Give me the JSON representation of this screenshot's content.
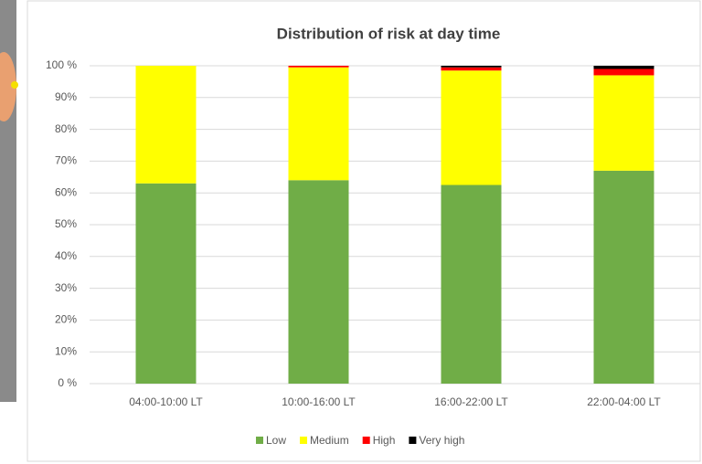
{
  "chart_data": {
    "type": "stacked_bar",
    "title": "Distribution of risk at day time",
    "categories": [
      "04:00-10:00 LT",
      "10:00-16:00 LT",
      "16:00-22:00 LT",
      "22:00-04:00 LT"
    ],
    "series": [
      {
        "name": "Low",
        "color": "#70ad47",
        "values": [
          63,
          64,
          62.5,
          67
        ]
      },
      {
        "name": "Medium",
        "color": "#ffff00",
        "values": [
          37,
          35.5,
          36,
          30
        ]
      },
      {
        "name": "High",
        "color": "#ff0000",
        "values": [
          0,
          0.5,
          1,
          2
        ]
      },
      {
        "name": "Very high",
        "color": "#000000",
        "values": [
          0,
          0,
          0.5,
          1
        ]
      }
    ],
    "ylim": [
      0,
      100
    ],
    "yticks": [
      {
        "value": 0,
        "label": "0 %"
      },
      {
        "value": 10,
        "label": "10%"
      },
      {
        "value": 20,
        "label": "20%"
      },
      {
        "value": 30,
        "label": "30%"
      },
      {
        "value": 40,
        "label": "40%"
      },
      {
        "value": 50,
        "label": "50%"
      },
      {
        "value": 60,
        "label": "60%"
      },
      {
        "value": 70,
        "label": "70%"
      },
      {
        "value": 80,
        "label": "80%"
      },
      {
        "value": 90,
        "label": "90%"
      },
      {
        "value": 100,
        "label": "100 %"
      }
    ],
    "grid": true,
    "legend": "bottom"
  }
}
